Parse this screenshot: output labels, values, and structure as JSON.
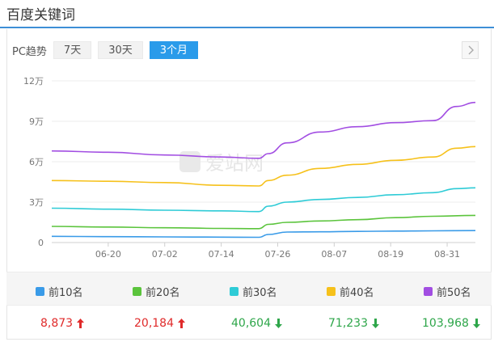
{
  "header": {
    "title": "百度关键词"
  },
  "toolbar": {
    "device_label": "PC趋势",
    "tabs": [
      {
        "label": "7天",
        "active": false
      },
      {
        "label": "30天",
        "active": false
      },
      {
        "label": "3个月",
        "active": true
      }
    ],
    "next_icon": "chevron-right-icon"
  },
  "watermark": {
    "text": "爱站网"
  },
  "chart_data": {
    "type": "line",
    "title": "",
    "xlabel": "",
    "ylabel": "",
    "ylim": [
      0,
      120000
    ],
    "y_ticks": [
      {
        "value": 0,
        "label": "0"
      },
      {
        "value": 30000,
        "label": "3万"
      },
      {
        "value": 60000,
        "label": "6万"
      },
      {
        "value": 90000,
        "label": "9万"
      },
      {
        "value": 120000,
        "label": "12万"
      }
    ],
    "x_ticks": [
      "06-20",
      "07-02",
      "07-14",
      "07-26",
      "08-07",
      "08-19",
      "08-31"
    ],
    "grid": "horizontal",
    "legend_position": "bottom",
    "x_range": [
      "06-08",
      "09-06"
    ],
    "series": [
      {
        "name": "前10名",
        "color": "#3a9be8",
        "points": [
          [
            "06-08",
            4600
          ],
          [
            "06-20",
            4400
          ],
          [
            "07-02",
            4200
          ],
          [
            "07-14",
            4000
          ],
          [
            "07-22",
            3900
          ],
          [
            "07-24",
            6000
          ],
          [
            "07-28",
            7800
          ],
          [
            "08-04",
            8000
          ],
          [
            "08-12",
            8300
          ],
          [
            "08-20",
            8500
          ],
          [
            "08-28",
            8700
          ],
          [
            "09-06",
            8873
          ]
        ]
      },
      {
        "name": "前20名",
        "color": "#5bc43c",
        "points": [
          [
            "06-08",
            12000
          ],
          [
            "06-20",
            11500
          ],
          [
            "07-02",
            11000
          ],
          [
            "07-14",
            10500
          ],
          [
            "07-22",
            10300
          ],
          [
            "07-24",
            13500
          ],
          [
            "07-28",
            15000
          ],
          [
            "08-04",
            16000
          ],
          [
            "08-12",
            17000
          ],
          [
            "08-20",
            18500
          ],
          [
            "08-28",
            19500
          ],
          [
            "09-06",
            20184
          ]
        ]
      },
      {
        "name": "前30名",
        "color": "#2ecbd6",
        "points": [
          [
            "06-08",
            25500
          ],
          [
            "06-20",
            24800
          ],
          [
            "07-02",
            24000
          ],
          [
            "07-14",
            23500
          ],
          [
            "07-22",
            23000
          ],
          [
            "07-24",
            27000
          ],
          [
            "07-28",
            30000
          ],
          [
            "08-04",
            32000
          ],
          [
            "08-12",
            33500
          ],
          [
            "08-20",
            35500
          ],
          [
            "08-28",
            37000
          ],
          [
            "09-02",
            40000
          ],
          [
            "09-06",
            40604
          ]
        ]
      },
      {
        "name": "前40名",
        "color": "#f6c11b",
        "points": [
          [
            "06-08",
            46000
          ],
          [
            "06-20",
            45500
          ],
          [
            "07-02",
            44500
          ],
          [
            "07-14",
            42500
          ],
          [
            "07-22",
            42000
          ],
          [
            "07-24",
            46000
          ],
          [
            "07-28",
            50000
          ],
          [
            "08-04",
            55000
          ],
          [
            "08-12",
            58000
          ],
          [
            "08-20",
            61000
          ],
          [
            "08-28",
            63500
          ],
          [
            "09-02",
            70000
          ],
          [
            "09-06",
            71233
          ]
        ]
      },
      {
        "name": "前50名",
        "color": "#a24ee2",
        "points": [
          [
            "06-08",
            68000
          ],
          [
            "06-20",
            67000
          ],
          [
            "07-02",
            65000
          ],
          [
            "07-14",
            63500
          ],
          [
            "07-22",
            62500
          ],
          [
            "07-24",
            66000
          ],
          [
            "07-28",
            74000
          ],
          [
            "08-04",
            82000
          ],
          [
            "08-12",
            86000
          ],
          [
            "08-20",
            89000
          ],
          [
            "08-28",
            90500
          ],
          [
            "09-02",
            101000
          ],
          [
            "09-06",
            103968
          ]
        ]
      }
    ]
  },
  "legend": {
    "items": [
      {
        "label": "前10名",
        "color": "#3a9be8"
      },
      {
        "label": "前20名",
        "color": "#5bc43c"
      },
      {
        "label": "前30名",
        "color": "#2ecbd6"
      },
      {
        "label": "前40名",
        "color": "#f6c11b"
      },
      {
        "label": "前50名",
        "color": "#a24ee2"
      }
    ]
  },
  "summary": {
    "values": [
      {
        "value": "8,873",
        "trend": "up",
        "color": "#e02a2a",
        "icon": "arrow-up-icon"
      },
      {
        "value": "20,184",
        "trend": "up",
        "color": "#e02a2a",
        "icon": "arrow-up-icon"
      },
      {
        "value": "40,604",
        "trend": "down",
        "color": "#2ea64a",
        "icon": "arrow-down-icon"
      },
      {
        "value": "71,233",
        "trend": "down",
        "color": "#2ea64a",
        "icon": "arrow-down-icon"
      },
      {
        "value": "103,968",
        "trend": "down",
        "color": "#2ea64a",
        "icon": "arrow-down-icon"
      }
    ]
  },
  "colors": {
    "accent": "#2a9bea",
    "title_rule": "#3d8fd6"
  }
}
